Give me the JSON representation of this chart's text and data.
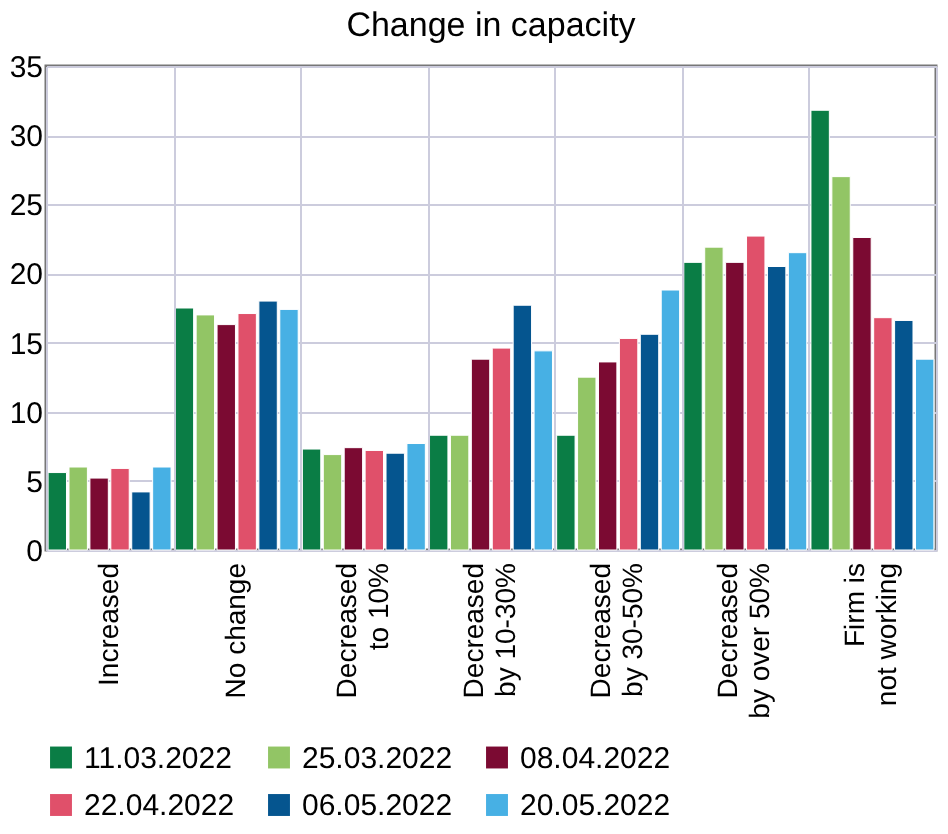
{
  "chart_data": {
    "type": "bar",
    "title": "Change in capacity",
    "categories": [
      "Increased",
      "No change",
      "Decreased\nto 10%",
      "Decreased\nby 10-30%",
      "Decreased\nby 30-50%",
      "Decreased\nby over 50%",
      "Firm is\nnot working"
    ],
    "series": [
      {
        "name": "11.03.2022",
        "color": "#0a7d45",
        "values": [
          5.6,
          17.5,
          7.3,
          8.3,
          8.3,
          20.8,
          31.8
        ]
      },
      {
        "name": "25.03.2022",
        "color": "#92c565",
        "values": [
          6.0,
          17.0,
          6.9,
          8.3,
          12.5,
          21.9,
          27.0
        ]
      },
      {
        "name": "08.04.2022",
        "color": "#7b0a32",
        "values": [
          5.2,
          16.3,
          7.4,
          13.8,
          13.6,
          20.8,
          22.6
        ]
      },
      {
        "name": "22.04.2022",
        "color": "#e0506a",
        "values": [
          5.9,
          17.1,
          7.2,
          14.6,
          15.3,
          22.7,
          16.8
        ]
      },
      {
        "name": "06.05.2022",
        "color": "#05558f",
        "values": [
          4.2,
          18.0,
          7.0,
          17.7,
          15.6,
          20.5,
          16.6
        ]
      },
      {
        "name": "20.05.2022",
        "color": "#47b0e4",
        "values": [
          6.0,
          17.4,
          7.7,
          14.4,
          18.8,
          21.5,
          13.8
        ]
      }
    ],
    "ylim": [
      0,
      35
    ],
    "yticks": [
      0,
      5,
      10,
      15,
      20,
      25,
      30,
      35
    ],
    "grid": true,
    "legend": "bottom"
  }
}
